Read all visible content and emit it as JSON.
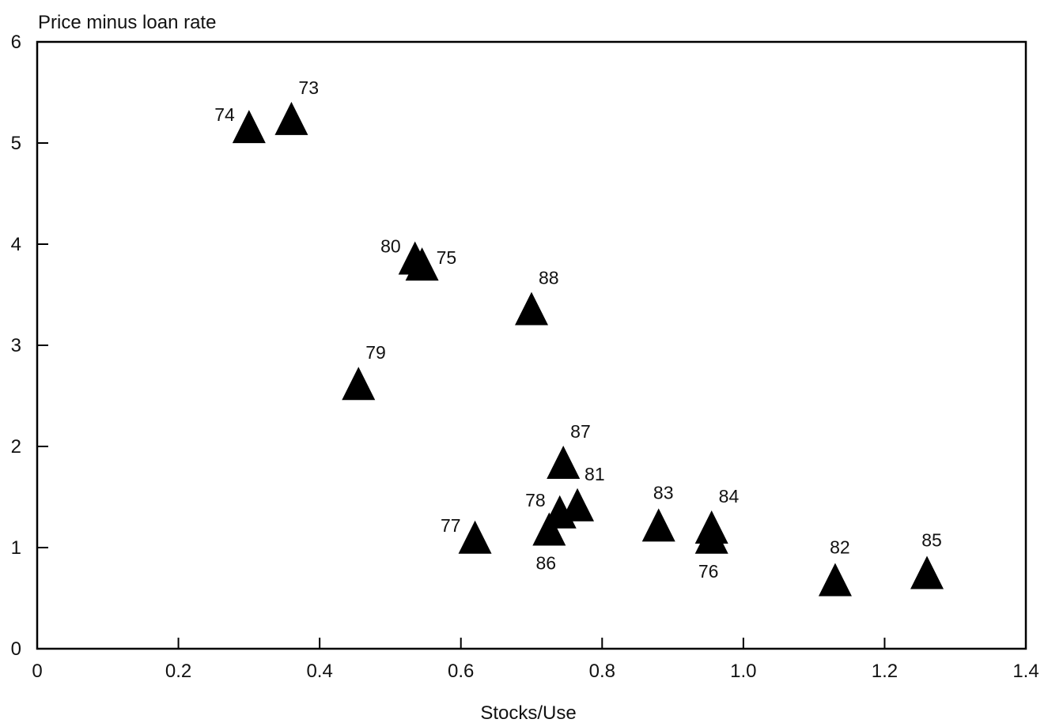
{
  "chart_data": {
    "type": "scatter",
    "title": "",
    "xlabel": "Stocks/Use",
    "ylabel": "Price minus loan rate",
    "xlim": [
      0,
      1.4
    ],
    "ylim": [
      0,
      6
    ],
    "grid": false,
    "legend": "none",
    "marker": "filled-triangle",
    "colors": {
      "marker": "#000000",
      "frame": "#000000",
      "text": "#111111",
      "background": "#ffffff"
    },
    "x_ticks": [
      {
        "value": 0,
        "label": "0"
      },
      {
        "value": 0.2,
        "label": "0.2"
      },
      {
        "value": 0.4,
        "label": "0.4"
      },
      {
        "value": 0.6,
        "label": "0.6"
      },
      {
        "value": 0.8,
        "label": "0.8"
      },
      {
        "value": 1.0,
        "label": "1.0"
      },
      {
        "value": 1.2,
        "label": "1.2"
      },
      {
        "value": 1.4,
        "label": "1.4"
      }
    ],
    "y_ticks": [
      {
        "value": 0,
        "label": "0"
      },
      {
        "value": 1,
        "label": "1"
      },
      {
        "value": 2,
        "label": "2"
      },
      {
        "value": 3,
        "label": "3"
      },
      {
        "value": 4,
        "label": "4"
      },
      {
        "value": 5,
        "label": "5"
      },
      {
        "value": 6,
        "label": "6"
      }
    ],
    "points": [
      {
        "label": "73",
        "x": 0.36,
        "y": 5.22,
        "label_pos": "upper-right"
      },
      {
        "label": "74",
        "x": 0.3,
        "y": 5.14,
        "label_pos": "upper-left"
      },
      {
        "label": "75",
        "x": 0.545,
        "y": 3.78,
        "label_pos": "right"
      },
      {
        "label": "76",
        "x": 0.955,
        "y": 1.08,
        "label_pos": "below"
      },
      {
        "label": "77",
        "x": 0.62,
        "y": 1.08,
        "label_pos": "upper-left"
      },
      {
        "label": "78",
        "x": 0.74,
        "y": 1.33,
        "label_pos": "upper-left"
      },
      {
        "label": "79",
        "x": 0.455,
        "y": 2.6,
        "label_pos": "upper-right"
      },
      {
        "label": "80",
        "x": 0.535,
        "y": 3.84,
        "label_pos": "upper-left"
      },
      {
        "label": "81",
        "x": 0.765,
        "y": 1.4,
        "label_pos": "upper-right"
      },
      {
        "label": "82",
        "x": 1.13,
        "y": 0.66,
        "label_pos": "above"
      },
      {
        "label": "83",
        "x": 0.88,
        "y": 1.2,
        "label_pos": "above"
      },
      {
        "label": "84",
        "x": 0.955,
        "y": 1.18,
        "label_pos": "upper-right"
      },
      {
        "label": "85",
        "x": 1.26,
        "y": 0.73,
        "label_pos": "above"
      },
      {
        "label": "86",
        "x": 0.725,
        "y": 1.16,
        "label_pos": "below"
      },
      {
        "label": "87",
        "x": 0.745,
        "y": 1.82,
        "label_pos": "upper-right"
      },
      {
        "label": "88",
        "x": 0.7,
        "y": 3.34,
        "label_pos": "upper-right"
      }
    ]
  }
}
